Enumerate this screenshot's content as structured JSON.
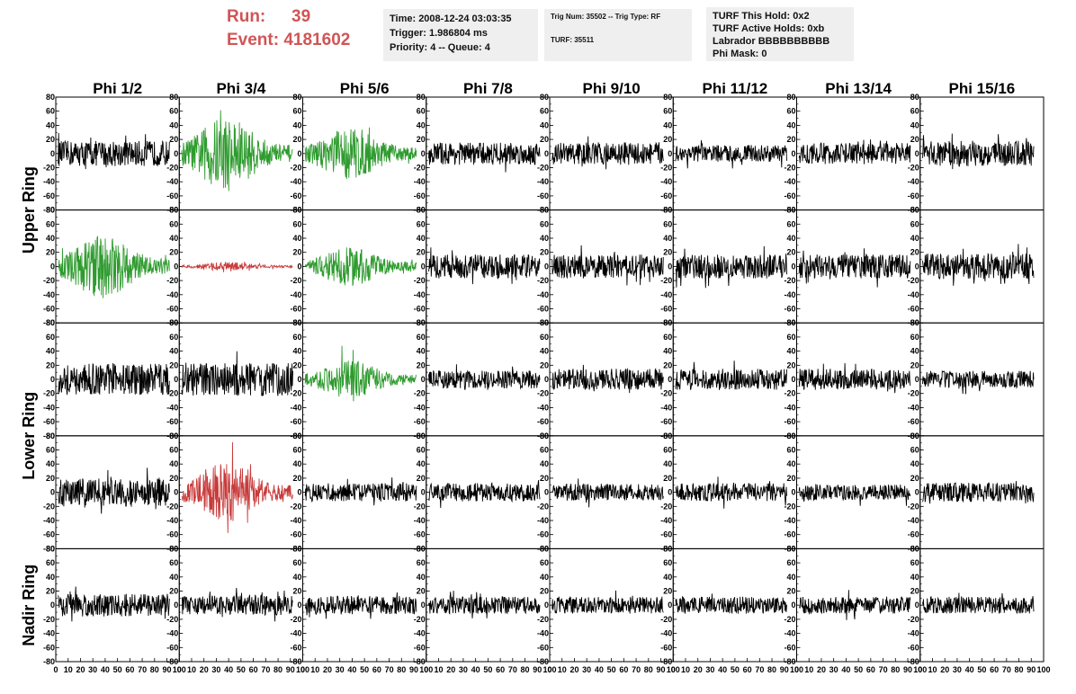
{
  "header": {
    "run_label": "Run:",
    "run_value": "39",
    "event_label": "Event:",
    "event_value": "4181602",
    "time": "Time: 2008-12-24 03:03:35",
    "trigger": "Trigger: 1.986804 ms",
    "priority": "Priority: 4 -- Queue: 4",
    "trig_num": "Trig Num: 35502 -- Trig Type: RF",
    "turf": "TURF: 35511",
    "turf_hold": "TURF This Hold: 0x2",
    "turf_active": "TURF Active Holds: 0xb",
    "labrador": "Labrador BBBBBBBBBB",
    "phi_mask": "Phi Mask: 0"
  },
  "chart_data": {
    "type": "line",
    "columns": [
      "Phi 1/2",
      "Phi 3/4",
      "Phi 5/6",
      "Phi 7/8",
      "Phi 9/10",
      "Phi 11/12",
      "Phi 13/14",
      "Phi 15/16"
    ],
    "ring_labels": [
      "Upper Ring",
      "Lower Ring",
      "Nadir Ring"
    ],
    "rows": 5,
    "ring_row_spans": [
      [
        0,
        1
      ],
      [
        2,
        3
      ],
      [
        4,
        4
      ]
    ],
    "xlim": [
      0,
      100
    ],
    "ylim": [
      -80,
      80
    ],
    "x_ticks": [
      "0",
      "10",
      "20",
      "30",
      "40",
      "50",
      "60",
      "70",
      "80",
      "90",
      "100"
    ],
    "y_ticks": [
      "80",
      "60",
      "40",
      "20",
      "0",
      "-20",
      "-40",
      "-60",
      "-80"
    ],
    "colors": {
      "normal": "#000000",
      "triggered": "#2e9b2e",
      "clipped": "#c83a3a"
    },
    "amplitude_map": [
      [
        18,
        35,
        25,
        16,
        16,
        12,
        15,
        18
      ],
      [
        30,
        4,
        18,
        17,
        17,
        17,
        17,
        18
      ],
      [
        22,
        24,
        18,
        13,
        15,
        15,
        15,
        12
      ],
      [
        20,
        28,
        13,
        13,
        12,
        13,
        11,
        14
      ],
      [
        16,
        14,
        13,
        12,
        12,
        12,
        12,
        12
      ]
    ],
    "color_map": [
      [
        "normal",
        "triggered",
        "triggered",
        "normal",
        "normal",
        "normal",
        "normal",
        "normal"
      ],
      [
        "triggered",
        "clipped",
        "triggered",
        "normal",
        "normal",
        "normal",
        "normal",
        "normal"
      ],
      [
        "normal",
        "normal",
        "triggered",
        "normal",
        "normal",
        "normal",
        "normal",
        "normal"
      ],
      [
        "normal",
        "clipped",
        "normal",
        "normal",
        "normal",
        "normal",
        "normal",
        "normal"
      ],
      [
        "normal",
        "normal",
        "normal",
        "normal",
        "normal",
        "normal",
        "normal",
        "normal"
      ]
    ]
  }
}
